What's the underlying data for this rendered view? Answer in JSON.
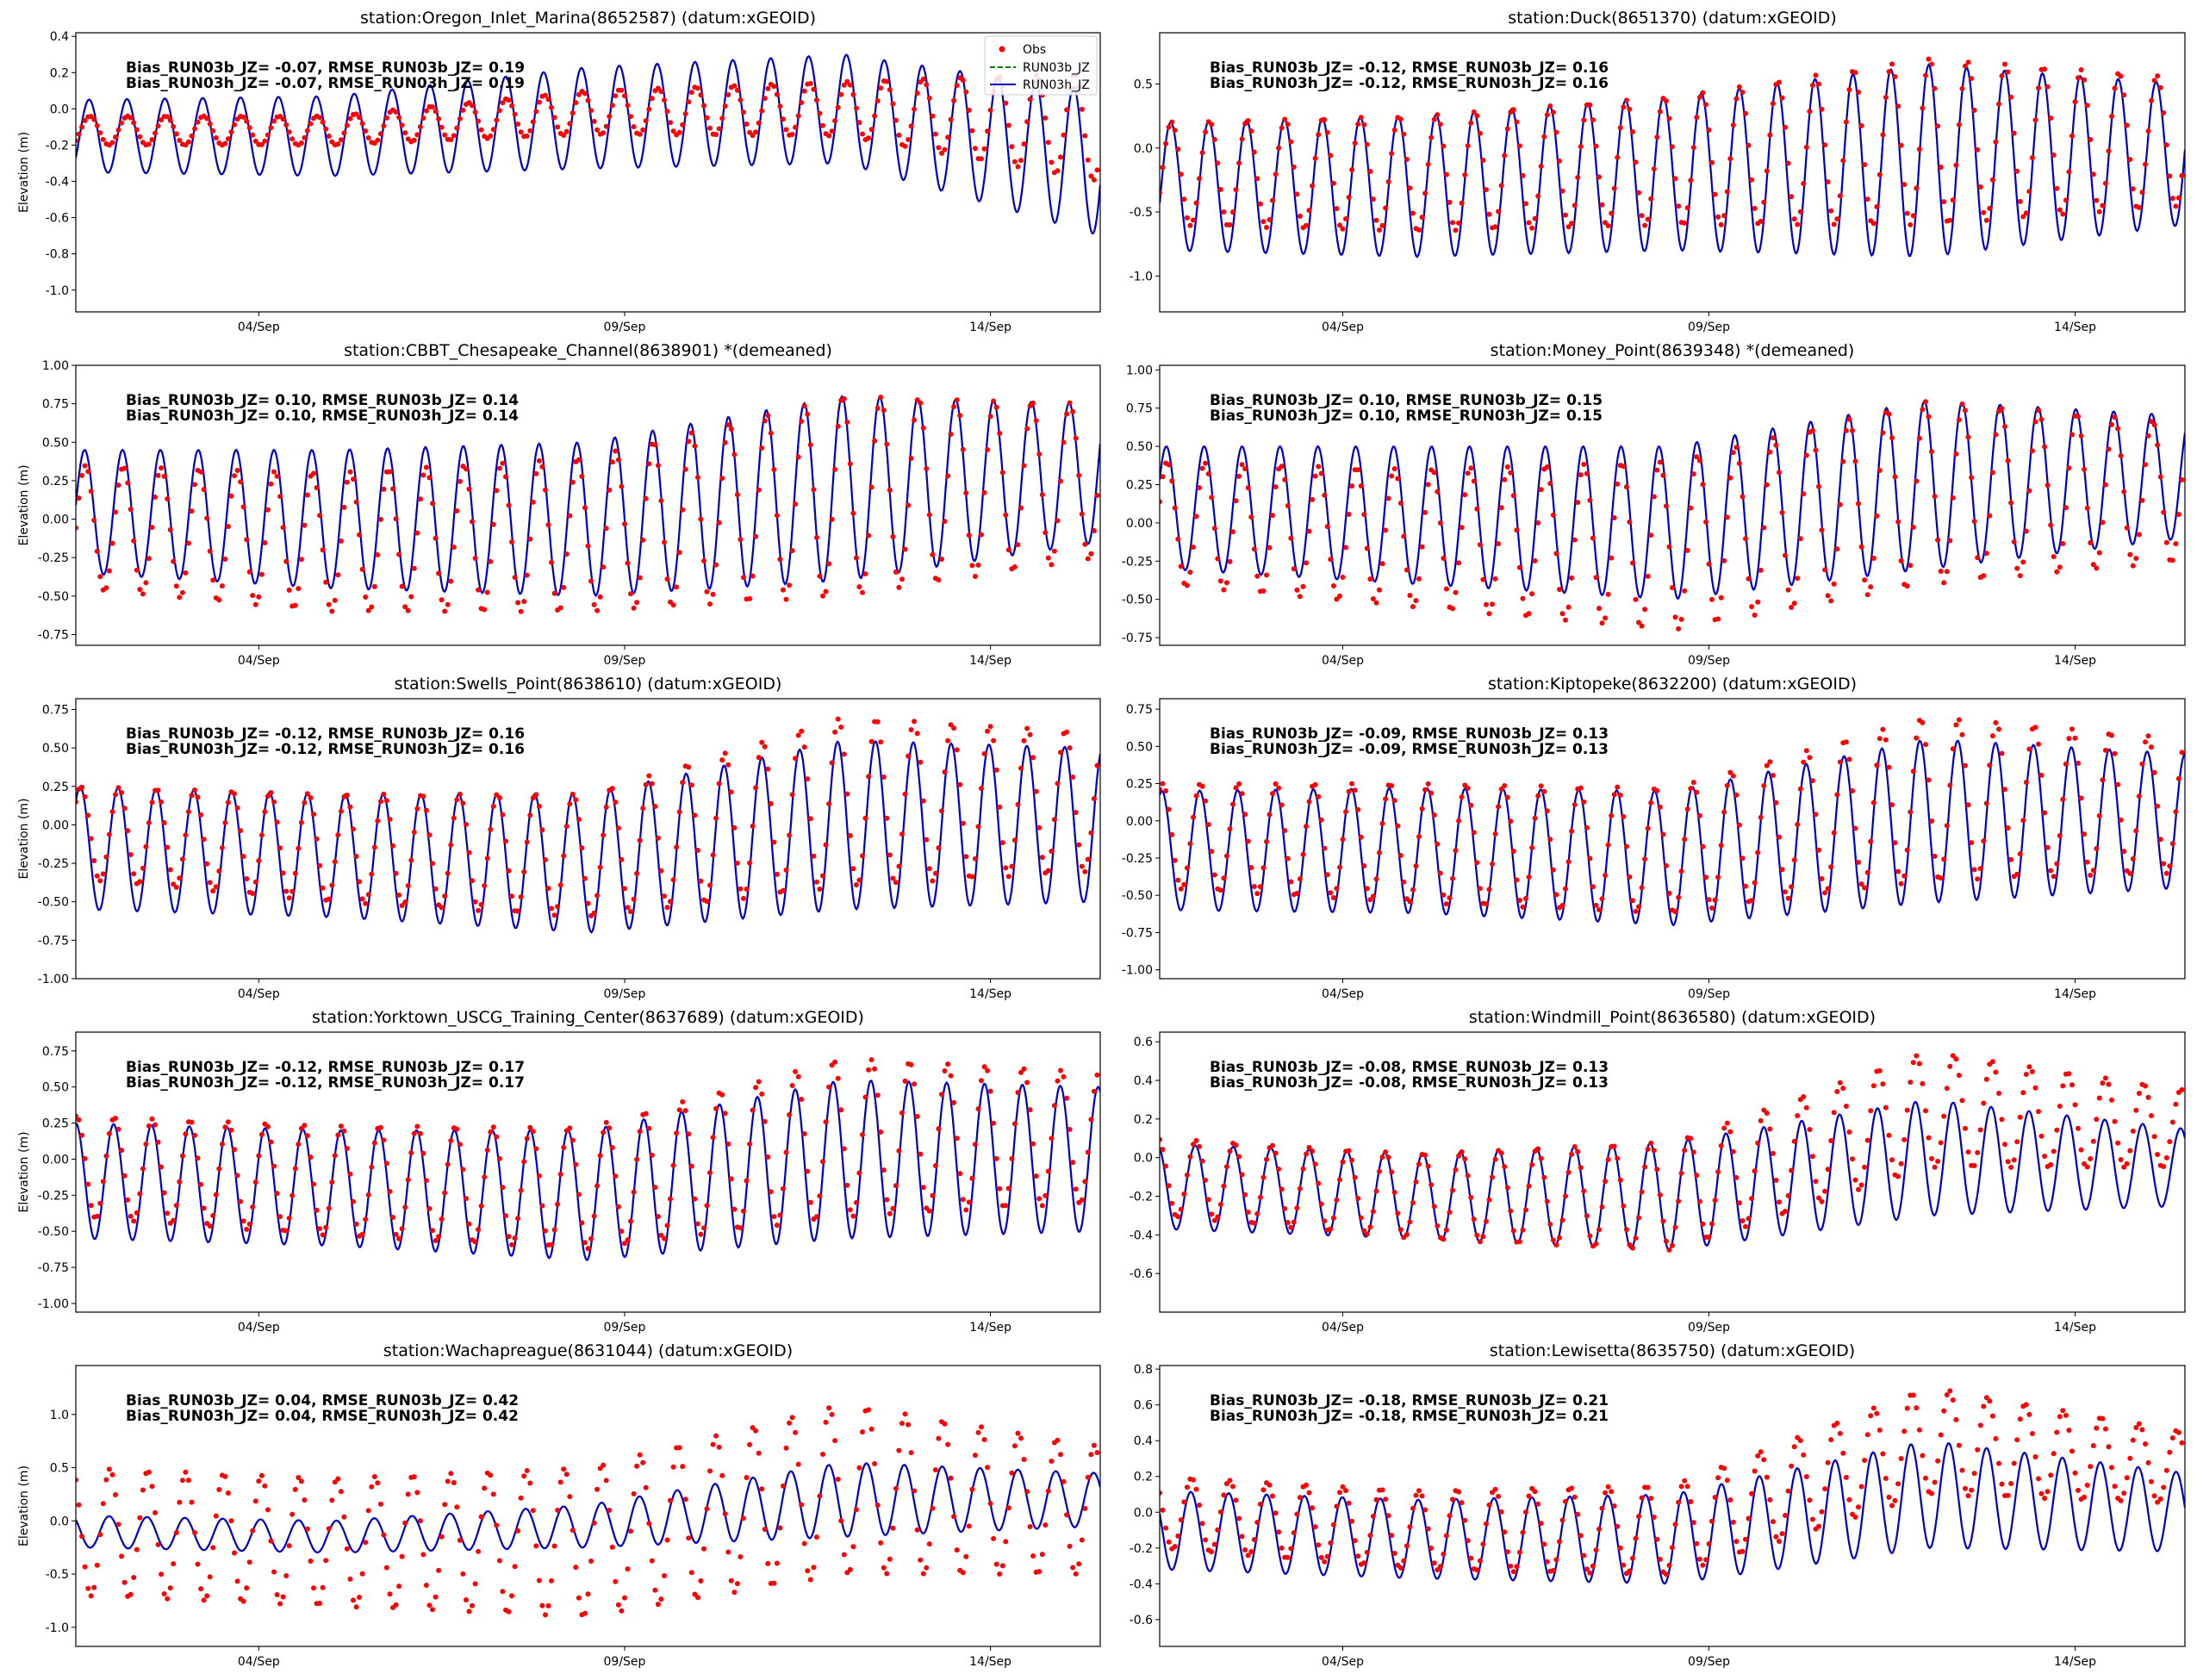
{
  "x_axis": {
    "start_day": 1.5,
    "end_day": 15.5,
    "tick_days": [
      4,
      9,
      14
    ],
    "tick_labels": [
      "04/Sep",
      "09/Sep",
      "14/Sep"
    ]
  },
  "legend": {
    "placement": "top-right",
    "entries": [
      "Obs",
      "RUN03b_JZ",
      "RUN03h_JZ"
    ]
  },
  "colors": {
    "obs": "#ff0000",
    "run03b": "#008000",
    "run03h": "#0000cd"
  },
  "chart_data": [
    {
      "type": "line",
      "title": "station:Oregon_Inlet_Marina(8652587) (datum:xGEOID)",
      "ylabel": "Elevation (m)",
      "ylim": [
        -1.12,
        0.42
      ],
      "yticks": [
        "0.4",
        "0.2",
        "0.0",
        "-0.2",
        "-0.4",
        "-0.6",
        "-0.8",
        "-1.0"
      ],
      "stat_lines": [
        "Bias_RUN03b_JZ= -0.07, RMSE_RUN03b_JZ=  0.19",
        "Bias_RUN03h_JZ= -0.07, RMSE_RUN03h_JZ=  0.19"
      ],
      "series": [
        {
          "name": "Obs"
        },
        {
          "name": "RUN03b_JZ"
        },
        {
          "name": "RUN03h_JZ"
        }
      ],
      "legend": true,
      "model": {
        "mean": [
          -0.15,
          -0.15,
          -0.05,
          0.0,
          -0.3
        ],
        "amp": [
          0.2,
          0.22,
          0.28,
          0.3,
          0.4
        ]
      },
      "obs": {
        "mean": [
          -0.12,
          -0.12,
          -0.02,
          0.0,
          -0.1
        ],
        "amp": [
          0.08,
          0.08,
          0.12,
          0.15,
          0.3
        ]
      }
    },
    {
      "type": "line",
      "title": "station:Duck(8651370) (datum:xGEOID)",
      "ylabel": "",
      "ylim": [
        -1.28,
        0.9
      ],
      "yticks": [
        "0.5",
        "0.0",
        "-0.5",
        "-1.0"
      ],
      "stat_lines": [
        "Bias_RUN03b_JZ= -0.12, RMSE_RUN03b_JZ=  0.16",
        "Bias_RUN03h_JZ= -0.12, RMSE_RUN03h_JZ=  0.16"
      ],
      "series": [
        {
          "name": "Obs"
        },
        {
          "name": "RUN03b_JZ"
        },
        {
          "name": "RUN03h_JZ"
        }
      ],
      "legend": false,
      "model": {
        "mean": [
          -0.3,
          -0.3,
          -0.2,
          -0.1,
          -0.05
        ],
        "amp": [
          0.5,
          0.55,
          0.6,
          0.75,
          0.55
        ]
      },
      "obs": {
        "mean": [
          -0.2,
          -0.2,
          -0.1,
          0.05,
          0.05
        ],
        "amp": [
          0.4,
          0.45,
          0.5,
          0.65,
          0.5
        ]
      }
    },
    {
      "type": "line",
      "title": "station:CBBT_Chesapeake_Channel(8638901) *(demeaned)",
      "ylabel": "Elevation (m)",
      "ylim": [
        -0.82,
        1.0
      ],
      "yticks": [
        "1.00",
        "0.75",
        "0.50",
        "0.25",
        "0.00",
        "-0.25",
        "-0.50",
        "-0.75"
      ],
      "stat_lines": [
        "Bias_RUN03b_JZ=  0.10, RMSE_RUN03b_JZ=  0.14",
        "Bias_RUN03h_JZ=  0.10, RMSE_RUN03h_JZ=  0.14"
      ],
      "series": [
        {
          "name": "Obs"
        },
        {
          "name": "RUN03b_JZ"
        },
        {
          "name": "RUN03h_JZ"
        }
      ],
      "legend": false,
      "model": {
        "mean": [
          0.05,
          0.0,
          0.0,
          0.2,
          0.3
        ],
        "amp": [
          0.4,
          0.45,
          0.5,
          0.6,
          0.45
        ]
      },
      "obs": {
        "mean": [
          -0.05,
          -0.15,
          -0.1,
          0.15,
          0.25
        ],
        "amp": [
          0.4,
          0.45,
          0.5,
          0.65,
          0.5
        ]
      }
    },
    {
      "type": "line",
      "title": "station:Money_Point(8639348) *(demeaned)",
      "ylabel": "",
      "ylim": [
        -0.8,
        1.03
      ],
      "yticks": [
        "1.00",
        "0.75",
        "0.50",
        "0.25",
        "0.00",
        "-0.25",
        "-0.50",
        "-0.75"
      ],
      "stat_lines": [
        "Bias_RUN03b_JZ=  0.10, RMSE_RUN03b_JZ=  0.15",
        "Bias_RUN03h_JZ=  0.10, RMSE_RUN03h_JZ=  0.15"
      ],
      "series": [
        {
          "name": "Obs"
        },
        {
          "name": "RUN03b_JZ"
        },
        {
          "name": "RUN03h_JZ"
        }
      ],
      "legend": false,
      "model": {
        "mean": [
          0.1,
          0.05,
          0.0,
          0.25,
          0.3
        ],
        "amp": [
          0.4,
          0.45,
          0.5,
          0.55,
          0.4
        ]
      },
      "obs": {
        "mean": [
          0.0,
          -0.1,
          -0.15,
          0.2,
          0.2
        ],
        "amp": [
          0.4,
          0.45,
          0.55,
          0.6,
          0.45
        ]
      }
    },
    {
      "type": "line",
      "title": "station:Swells_Point(8638610) (datum:xGEOID)",
      "ylabel": "Elevation (m)",
      "ylim": [
        -1.0,
        0.82
      ],
      "yticks": [
        "0.75",
        "0.50",
        "0.25",
        "0.00",
        "-0.25",
        "-0.50",
        "-0.75",
        "-1.00"
      ],
      "stat_lines": [
        "Bias_RUN03b_JZ= -0.12, RMSE_RUN03b_JZ=  0.16",
        "Bias_RUN03h_JZ= -0.12, RMSE_RUN03h_JZ=  0.16"
      ],
      "series": [
        {
          "name": "Obs"
        },
        {
          "name": "RUN03b_JZ"
        },
        {
          "name": "RUN03h_JZ"
        }
      ],
      "legend": false,
      "model": {
        "mean": [
          -0.15,
          -0.2,
          -0.25,
          0.0,
          0.0
        ],
        "amp": [
          0.4,
          0.4,
          0.45,
          0.55,
          0.5
        ]
      },
      "obs": {
        "mean": [
          -0.05,
          -0.15,
          -0.2,
          0.15,
          0.15
        ],
        "amp": [
          0.3,
          0.35,
          0.4,
          0.55,
          0.45
        ]
      }
    },
    {
      "type": "line",
      "title": "station:Kiptopeke(8632200) (datum:xGEOID)",
      "ylabel": "",
      "ylim": [
        -1.06,
        0.82
      ],
      "yticks": [
        "0.75",
        "0.50",
        "0.25",
        "0.00",
        "-0.25",
        "-0.50",
        "-0.75",
        "-1.00"
      ],
      "stat_lines": [
        "Bias_RUN03b_JZ= -0.09, RMSE_RUN03b_JZ=  0.13",
        "Bias_RUN03h_JZ= -0.09, RMSE_RUN03h_JZ=  0.13"
      ],
      "series": [
        {
          "name": "Obs"
        },
        {
          "name": "RUN03b_JZ"
        },
        {
          "name": "RUN03h_JZ"
        }
      ],
      "legend": false,
      "model": {
        "mean": [
          -0.2,
          -0.2,
          -0.25,
          0.0,
          0.0
        ],
        "amp": [
          0.4,
          0.42,
          0.45,
          0.55,
          0.45
        ]
      },
      "obs": {
        "mean": [
          -0.1,
          -0.15,
          -0.2,
          0.15,
          0.1
        ],
        "amp": [
          0.35,
          0.4,
          0.42,
          0.55,
          0.45
        ]
      }
    },
    {
      "type": "line",
      "title": "station:Yorktown_USCG_Training_Center(8637689) (datum:xGEOID)",
      "ylabel": "Elevation (m)",
      "ylim": [
        -1.06,
        0.88
      ],
      "yticks": [
        "0.75",
        "0.50",
        "0.25",
        "0.00",
        "-0.25",
        "-0.50",
        "-0.75",
        "-1.00"
      ],
      "stat_lines": [
        "Bias_RUN03b_JZ= -0.12, RMSE_RUN03b_JZ=  0.17",
        "Bias_RUN03h_JZ= -0.12, RMSE_RUN03h_JZ=  0.17"
      ],
      "series": [
        {
          "name": "Obs"
        },
        {
          "name": "RUN03b_JZ"
        },
        {
          "name": "RUN03h_JZ"
        }
      ],
      "legend": false,
      "model": {
        "mean": [
          -0.15,
          -0.2,
          -0.25,
          0.0,
          0.0
        ],
        "amp": [
          0.4,
          0.4,
          0.45,
          0.55,
          0.5
        ]
      },
      "obs": {
        "mean": [
          -0.05,
          -0.15,
          -0.2,
          0.15,
          0.15
        ],
        "amp": [
          0.35,
          0.38,
          0.42,
          0.55,
          0.45
        ]
      }
    },
    {
      "type": "line",
      "title": "station:Windmill_Point(8636580) (datum:xGEOID)",
      "ylabel": "",
      "ylim": [
        -0.8,
        0.65
      ],
      "yticks": [
        "0.6",
        "0.4",
        "0.2",
        "0.0",
        "-0.2",
        "-0.4",
        "-0.6"
      ],
      "stat_lines": [
        "Bias_RUN03b_JZ= -0.08, RMSE_RUN03b_JZ=  0.13",
        "Bias_RUN03h_JZ= -0.08, RMSE_RUN03h_JZ=  0.13"
      ],
      "series": [
        {
          "name": "Obs"
        },
        {
          "name": "RUN03b_JZ"
        },
        {
          "name": "RUN03h_JZ"
        }
      ],
      "legend": false,
      "model": {
        "mean": [
          -0.15,
          -0.2,
          -0.2,
          0.0,
          -0.05
        ],
        "amp": [
          0.22,
          0.22,
          0.28,
          0.3,
          0.2
        ]
      },
      "obs": {
        "mean": [
          -0.1,
          -0.2,
          -0.2,
          0.25,
          0.15
        ],
        "amp": [
          0.2,
          0.22,
          0.28,
          0.3,
          0.2
        ]
      }
    },
    {
      "type": "line",
      "title": "station:Wachapreague(8631044) (datum:xGEOID)",
      "ylabel": "Elevation (m)",
      "ylim": [
        -1.18,
        1.46
      ],
      "yticks": [
        "1.0",
        "0.5",
        "0.0",
        "-0.5",
        "-1.0"
      ],
      "stat_lines": [
        "Bias_RUN03b_JZ=  0.04, RMSE_RUN03b_JZ=  0.42",
        "Bias_RUN03h_JZ=  0.04, RMSE_RUN03h_JZ=  0.42"
      ],
      "series": [
        {
          "name": "Obs"
        },
        {
          "name": "RUN03b_JZ"
        },
        {
          "name": "RUN03h_JZ"
        }
      ],
      "legend": false,
      "model": {
        "mean": [
          -0.1,
          -0.15,
          -0.05,
          0.2,
          0.2
        ],
        "amp": [
          0.15,
          0.15,
          0.2,
          0.35,
          0.25
        ]
      },
      "obs": {
        "mean": [
          -0.1,
          -0.2,
          -0.2,
          0.3,
          0.1
        ],
        "amp": [
          0.6,
          0.6,
          0.7,
          0.8,
          0.6
        ]
      }
    },
    {
      "type": "line",
      "title": "station:Lewisetta(8635750) (datum:xGEOID)",
      "ylabel": "",
      "ylim": [
        -0.75,
        0.82
      ],
      "yticks": [
        "0.8",
        "0.6",
        "0.4",
        "0.2",
        "0.0",
        "-0.2",
        "-0.4",
        "-0.6"
      ],
      "stat_lines": [
        "Bias_RUN03b_JZ= -0.18, RMSE_RUN03b_JZ=  0.21",
        "Bias_RUN03h_JZ= -0.18, RMSE_RUN03h_JZ=  0.21"
      ],
      "series": [
        {
          "name": "Obs"
        },
        {
          "name": "RUN03b_JZ"
        },
        {
          "name": "RUN03h_JZ"
        }
      ],
      "legend": false,
      "model": {
        "mean": [
          -0.1,
          -0.15,
          -0.15,
          0.1,
          0.0
        ],
        "amp": [
          0.22,
          0.22,
          0.25,
          0.3,
          0.22
        ]
      },
      "obs": {
        "mean": [
          0.0,
          -0.1,
          -0.1,
          0.4,
          0.25
        ],
        "amp": [
          0.2,
          0.22,
          0.25,
          0.3,
          0.2
        ]
      }
    }
  ]
}
